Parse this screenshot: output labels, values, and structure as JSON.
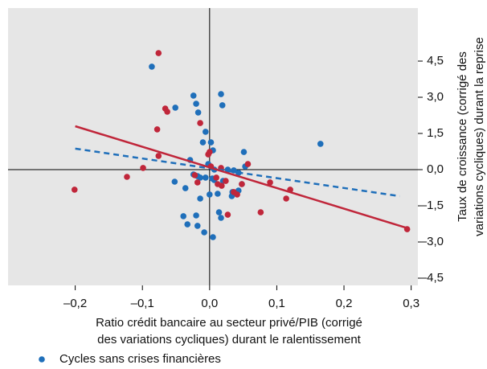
{
  "chart_data": {
    "type": "scatter",
    "xlabel": [
      "Ratio crédit bancaire au secteur privé/PIB (corrigé",
      "des variations cycliques) durant le ralentissement"
    ],
    "ylabel": [
      "Taux de croissance (corrigé des",
      "variations cycliques) durant la reprise"
    ],
    "xlim": [
      -0.3,
      0.31
    ],
    "ylim": [
      -4.8,
      6.7
    ],
    "xticks": [
      {
        "value": -0.2,
        "label": "–0,2"
      },
      {
        "value": -0.1,
        "label": "–0,1"
      },
      {
        "value": 0,
        "label": "0,0"
      },
      {
        "value": 0.1,
        "label": "0,1"
      },
      {
        "value": 0.2,
        "label": "0,2"
      },
      {
        "value": 0.3,
        "label": "0,3"
      }
    ],
    "yticks": [
      {
        "value": -4.5,
        "label": "–4,5"
      },
      {
        "value": -3,
        "label": "–3,0"
      },
      {
        "value": -1.5,
        "label": "–1,5"
      },
      {
        "value": 0,
        "label": "0,0"
      },
      {
        "value": 1.5,
        "label": "1,5"
      },
      {
        "value": 3,
        "label": "3,0"
      },
      {
        "value": 4.5,
        "label": "4,5"
      }
    ],
    "grid": false,
    "background": "#e6e6e6",
    "series": [
      {
        "name": "Cycles sans crises financières",
        "color": "#1f6fba",
        "x": [
          -0.086,
          -0.024,
          -0.02,
          -0.051,
          -0.017,
          0.017,
          0.019,
          -0.006,
          -0.01,
          0.002,
          0.005,
          0.051,
          0.165,
          -0.029,
          -0.002,
          0.053,
          0.007,
          0.027,
          0.036,
          -0.024,
          -0.018,
          -0.014,
          -0.006,
          0.004,
          0.043,
          0.007,
          -0.036,
          -0.052,
          0.02,
          0.048,
          0.043,
          0.034,
          0,
          0.012,
          -0.014,
          0.033,
          -0.039,
          -0.02,
          -0.033,
          -0.018,
          0.014,
          0.017,
          -0.008,
          0.005
        ],
        "y": [
          4.27,
          3.07,
          2.73,
          2.57,
          2.37,
          3.13,
          2.67,
          1.57,
          1.13,
          1.13,
          0.8,
          0.73,
          1.07,
          0.4,
          0.23,
          0.13,
          0,
          0,
          -0.03,
          -0.2,
          -0.27,
          -0.33,
          -0.33,
          -0.37,
          -0.13,
          -0.43,
          -0.77,
          -0.5,
          -0.47,
          -0.6,
          -0.87,
          -0.93,
          -1.03,
          -1,
          -1.2,
          -1.1,
          -1.93,
          -1.9,
          -2.27,
          -2.33,
          -1.77,
          -2,
          -2.6,
          -2.8
        ]
      },
      {
        "color": "#c0263a",
        "x": [
          -0.076,
          -0.066,
          -0.063,
          -0.078,
          -0.014,
          -0.076,
          -0.099,
          -0.201,
          -0.123,
          0,
          -0.002,
          0.002,
          0.017,
          0.057,
          0.01,
          0.024,
          0.018,
          -0.018,
          -0.022,
          0.048,
          0.036,
          0.041,
          0.027,
          0.09,
          0.114,
          0.12,
          0.076,
          0.294,
          0.012
        ],
        "y": [
          4.83,
          2.53,
          2.4,
          1.67,
          1.93,
          0.57,
          0.07,
          -0.83,
          -0.3,
          0.73,
          0.63,
          0.13,
          0.07,
          0.23,
          -0.33,
          -0.47,
          -0.67,
          -0.53,
          -0.23,
          -0.6,
          -0.93,
          -1.03,
          -1.87,
          -0.53,
          -1.2,
          -0.83,
          -1.77,
          -2.47,
          -0.6
        ]
      }
    ],
    "fit_lines": [
      {
        "color": "#1f6fba",
        "dashed": true,
        "x": [
          -0.2,
          0.283
        ],
        "y": [
          0.87,
          -1.1
        ]
      },
      {
        "color": "#c0263a",
        "dashed": false,
        "x": [
          -0.2,
          0.295
        ],
        "y": [
          1.8,
          -2.43
        ]
      }
    ]
  }
}
